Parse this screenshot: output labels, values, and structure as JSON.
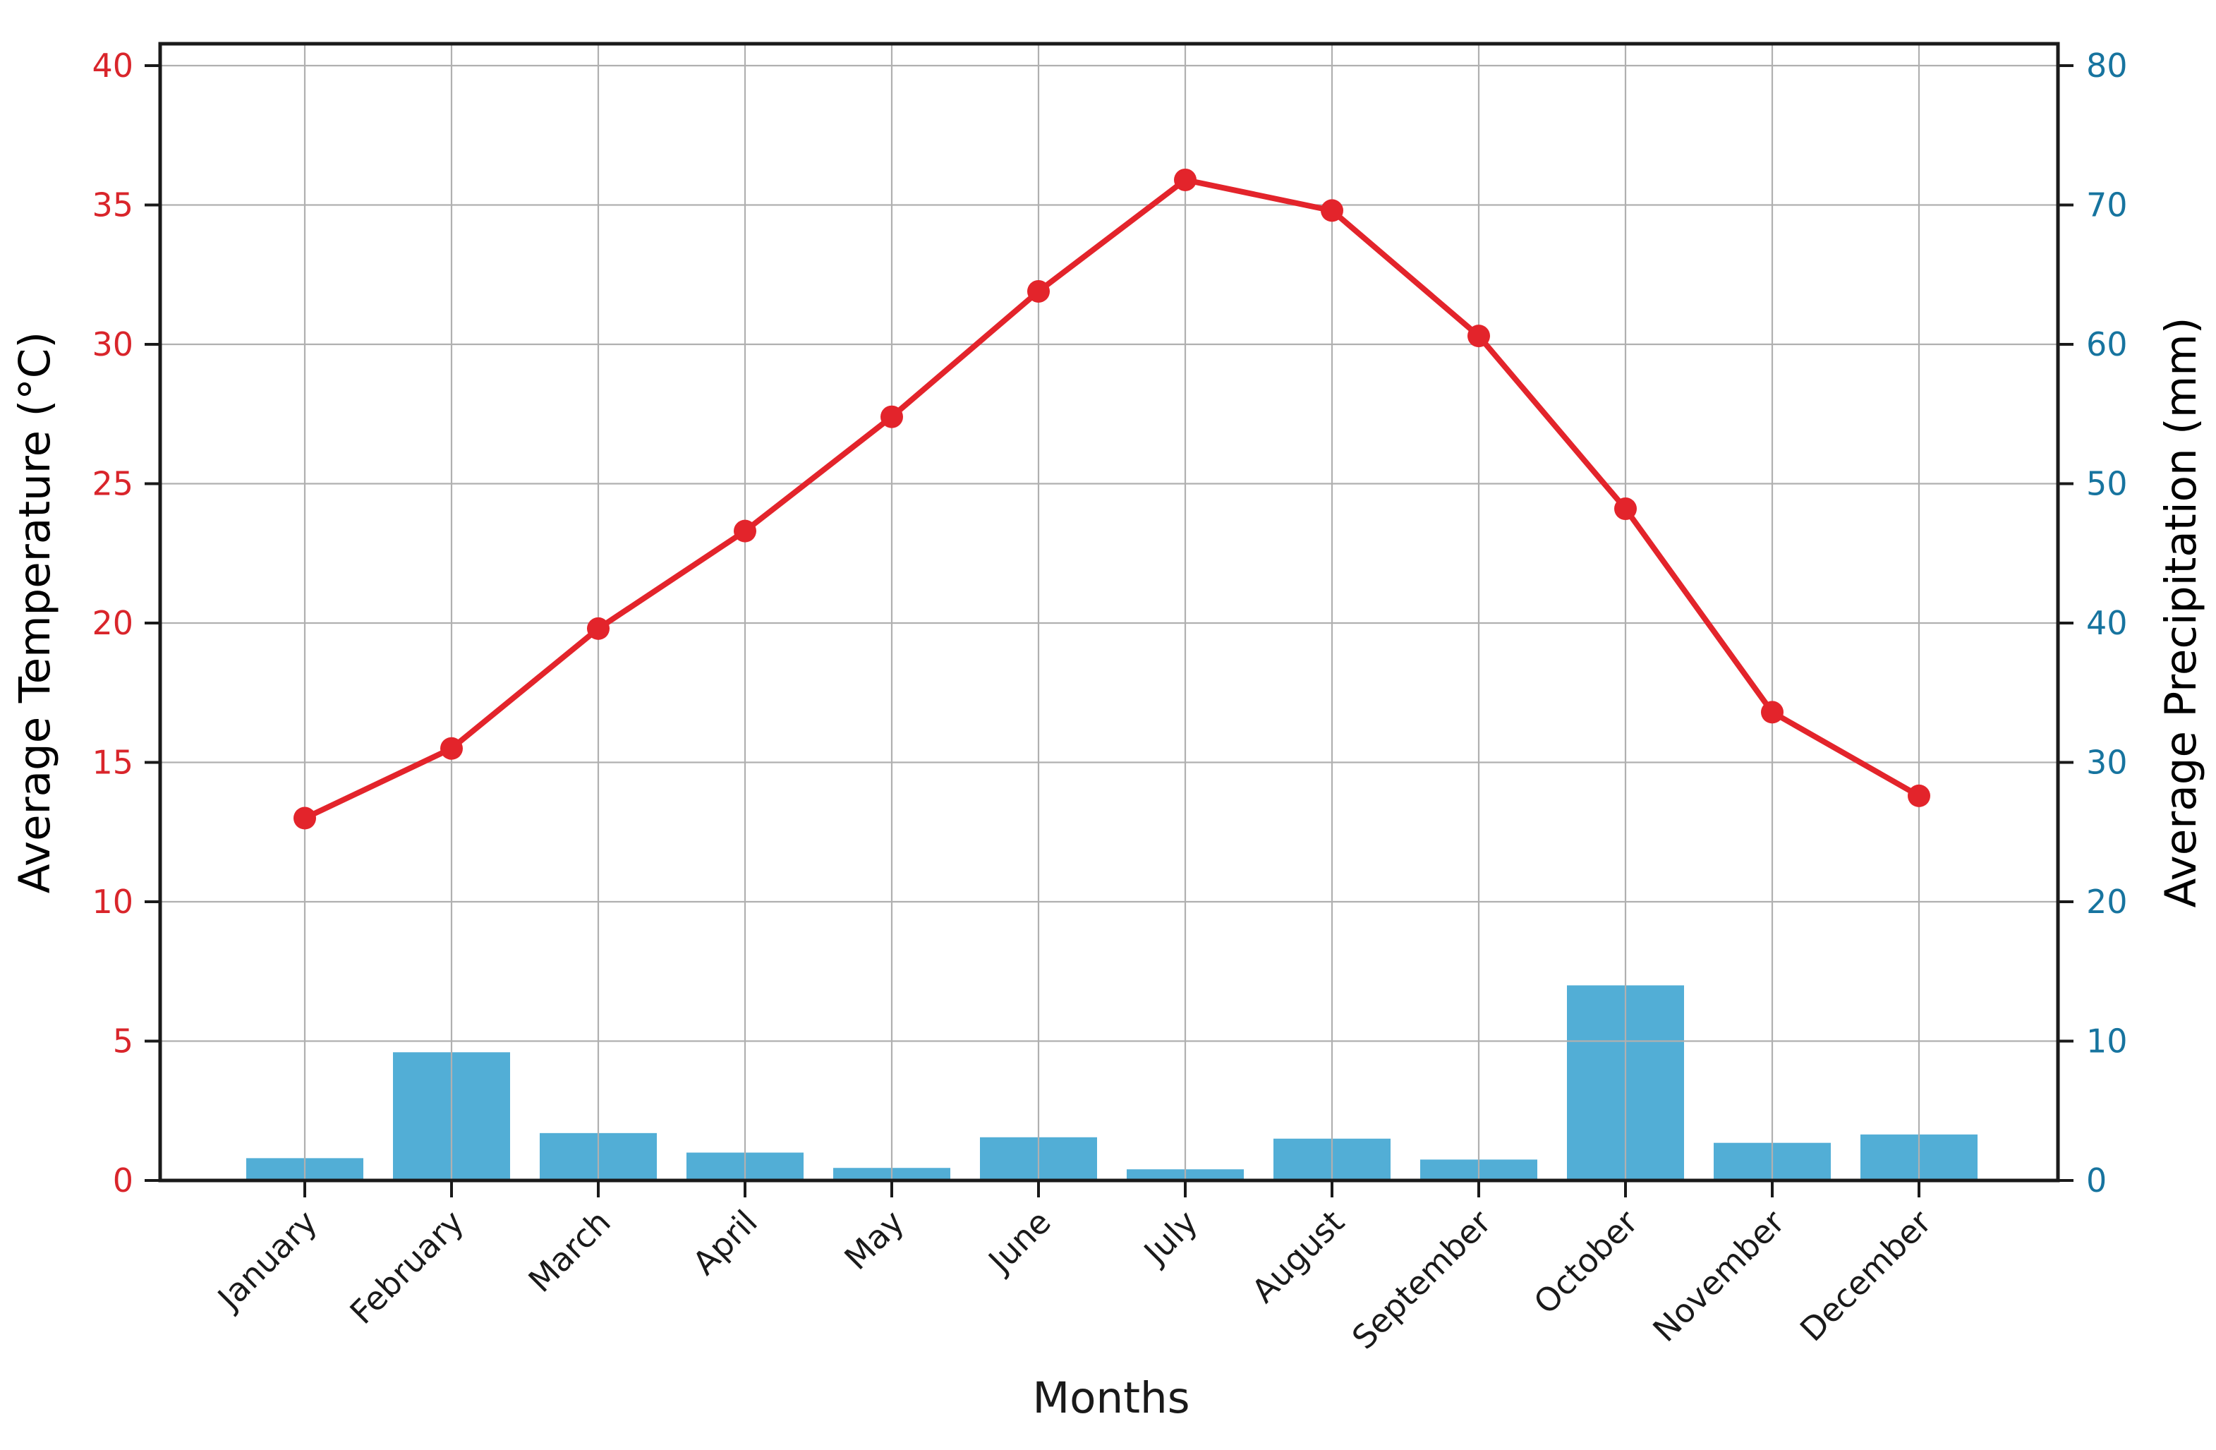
{
  "figure": {
    "background": "#ffffff"
  },
  "colors": {
    "temperature_line": "#e3242b",
    "temperature_marker": "#e3242b",
    "temperature_text": "#d9252b",
    "precipitation_bar": "#52aed6",
    "precipitation_text": "#17749f",
    "gridline": "#b0b0b0",
    "axis_spine": "#1a1a1a",
    "tick_mark": "#1a1a1a",
    "month_text": "#1a1a1a"
  },
  "chart_data": {
    "type": "combo-line-bar-dual-axis",
    "categories": [
      "January",
      "February",
      "March",
      "April",
      "May",
      "June",
      "July",
      "August",
      "September",
      "October",
      "November",
      "December"
    ],
    "series": [
      {
        "name": "Average Temperature",
        "type": "line",
        "axis": "left",
        "marker": "circle",
        "values": [
          13.0,
          15.5,
          19.8,
          23.3,
          27.4,
          31.9,
          35.9,
          34.8,
          30.3,
          24.1,
          16.8,
          13.8
        ]
      },
      {
        "name": "Average Precipitation",
        "type": "bar",
        "axis": "right",
        "values": [
          1.6,
          9.2,
          3.4,
          2.0,
          0.9,
          3.1,
          0.8,
          3.0,
          1.5,
          14.0,
          2.7,
          3.3
        ]
      }
    ],
    "xlabel": "Months",
    "ylabel_left": "Average Temperature (°C)",
    "ylabel_right": "Average Precipitation (mm)",
    "ylim_left": [
      0,
      40.8
    ],
    "ylim_right": [
      0,
      81.6
    ],
    "yticks_left": [
      0,
      5,
      10,
      15,
      20,
      25,
      30,
      35,
      40
    ],
    "yticks_right": [
      0,
      10,
      20,
      30,
      40,
      50,
      60,
      70,
      80
    ],
    "grid": true,
    "legend_position": "none",
    "xtick_rotation_degrees": 45
  }
}
